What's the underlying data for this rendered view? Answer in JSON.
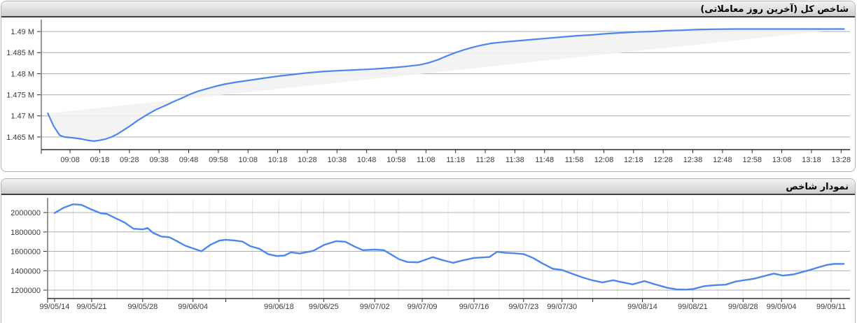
{
  "panels": {
    "intraday": {
      "title": "شاخص کل (آخرین روز معاملاتی)"
    },
    "history": {
      "title": "نمودار شاخص"
    }
  },
  "colors": {
    "line": "#4d86ec",
    "h_grid": "#adadad",
    "minor_grid": "#e7e7e7",
    "axis": "#2f2f2f",
    "tick_label": "#3c3c3c",
    "area_fill": "#f2f2f2",
    "panel_border": "#b2b2b2",
    "header_underline": "#3f3f3f"
  },
  "chart_data": [
    {
      "id": "intraday",
      "type": "line",
      "title": "شاخص کل (آخرین روز معاملاتی)",
      "x_unit": "minutes_after_0900",
      "xlim": [
        -1.7,
        271
      ],
      "ylim": [
        1462000,
        1492500
      ],
      "fill_to_chord": true,
      "minor_vgrid": false,
      "y_ticks": [
        {
          "label": "1.465 M",
          "v": 1465000
        },
        {
          "label": "1.47 M",
          "v": 1470000
        },
        {
          "label": "1.475 M",
          "v": 1475000
        },
        {
          "label": "1.48 M",
          "v": 1480000
        },
        {
          "label": "1.485 M",
          "v": 1485000
        },
        {
          "label": "1.49 M",
          "v": 1490000
        }
      ],
      "x_ticks": [
        {
          "label": "09:08",
          "m": 8
        },
        {
          "label": "09:18",
          "m": 18
        },
        {
          "label": "09:28",
          "m": 28
        },
        {
          "label": "09:38",
          "m": 38
        },
        {
          "label": "09:48",
          "m": 48
        },
        {
          "label": "09:58",
          "m": 58
        },
        {
          "label": "10:08",
          "m": 68
        },
        {
          "label": "10:18",
          "m": 78
        },
        {
          "label": "10:28",
          "m": 88
        },
        {
          "label": "10:38",
          "m": 98
        },
        {
          "label": "10:48",
          "m": 108
        },
        {
          "label": "10:58",
          "m": 118
        },
        {
          "label": "11:08",
          "m": 128
        },
        {
          "label": "11:18",
          "m": 138
        },
        {
          "label": "11:28",
          "m": 148
        },
        {
          "label": "11:38",
          "m": 158
        },
        {
          "label": "11:48",
          "m": 168
        },
        {
          "label": "11:58",
          "m": 178
        },
        {
          "label": "12:08",
          "m": 188
        },
        {
          "label": "12:18",
          "m": 198
        },
        {
          "label": "12:28",
          "m": 208
        },
        {
          "label": "12:38",
          "m": 218
        },
        {
          "label": "12:48",
          "m": 228
        },
        {
          "label": "12:58",
          "m": 238
        },
        {
          "label": "13:08",
          "m": 248
        },
        {
          "label": "13:18",
          "m": 258
        },
        {
          "label": "13:28",
          "m": 268
        }
      ],
      "points": [
        {
          "m": 0.5,
          "v": 1470600
        },
        {
          "m": 2.5,
          "v": 1467500
        },
        {
          "m": 4.5,
          "v": 1465400
        },
        {
          "m": 6,
          "v": 1465000
        },
        {
          "m": 9,
          "v": 1464800
        },
        {
          "m": 12,
          "v": 1464500
        },
        {
          "m": 14,
          "v": 1464200
        },
        {
          "m": 16,
          "v": 1464000
        },
        {
          "m": 18,
          "v": 1464200
        },
        {
          "m": 20,
          "v": 1464500
        },
        {
          "m": 22,
          "v": 1465000
        },
        {
          "m": 24,
          "v": 1465700
        },
        {
          "m": 26,
          "v": 1466600
        },
        {
          "m": 28,
          "v": 1467500
        },
        {
          "m": 31,
          "v": 1469000
        },
        {
          "m": 34,
          "v": 1470300
        },
        {
          "m": 37,
          "v": 1471500
        },
        {
          "m": 40,
          "v": 1472400
        },
        {
          "m": 43,
          "v": 1473400
        },
        {
          "m": 46,
          "v": 1474300
        },
        {
          "m": 48,
          "v": 1475000
        },
        {
          "m": 51,
          "v": 1475800
        },
        {
          "m": 54,
          "v": 1476400
        },
        {
          "m": 57,
          "v": 1477000
        },
        {
          "m": 60,
          "v": 1477500
        },
        {
          "m": 64,
          "v": 1478000
        },
        {
          "m": 68,
          "v": 1478400
        },
        {
          "m": 73,
          "v": 1478900
        },
        {
          "m": 78,
          "v": 1479400
        },
        {
          "m": 83,
          "v": 1479800
        },
        {
          "m": 88,
          "v": 1480200
        },
        {
          "m": 93,
          "v": 1480500
        },
        {
          "m": 98,
          "v": 1480700
        },
        {
          "m": 104,
          "v": 1480900
        },
        {
          "m": 110,
          "v": 1481100
        },
        {
          "m": 116,
          "v": 1481400
        },
        {
          "m": 121,
          "v": 1481700
        },
        {
          "m": 126,
          "v": 1482100
        },
        {
          "m": 129,
          "v": 1482600
        },
        {
          "m": 132,
          "v": 1483300
        },
        {
          "m": 135,
          "v": 1484200
        },
        {
          "m": 138,
          "v": 1485000
        },
        {
          "m": 141,
          "v": 1485700
        },
        {
          "m": 144,
          "v": 1486300
        },
        {
          "m": 147,
          "v": 1486800
        },
        {
          "m": 150,
          "v": 1487200
        },
        {
          "m": 154,
          "v": 1487500
        },
        {
          "m": 159,
          "v": 1487800
        },
        {
          "m": 164,
          "v": 1488100
        },
        {
          "m": 169,
          "v": 1488400
        },
        {
          "m": 174,
          "v": 1488700
        },
        {
          "m": 179,
          "v": 1489000
        },
        {
          "m": 184,
          "v": 1489200
        },
        {
          "m": 189,
          "v": 1489500
        },
        {
          "m": 194,
          "v": 1489700
        },
        {
          "m": 199,
          "v": 1489900
        },
        {
          "m": 204,
          "v": 1490000
        },
        {
          "m": 209,
          "v": 1490200
        },
        {
          "m": 214,
          "v": 1490300
        },
        {
          "m": 219,
          "v": 1490450
        },
        {
          "m": 225,
          "v": 1490550
        },
        {
          "m": 232,
          "v": 1490600
        },
        {
          "m": 240,
          "v": 1490600
        },
        {
          "m": 250,
          "v": 1490600
        },
        {
          "m": 260,
          "v": 1490600
        },
        {
          "m": 269,
          "v": 1490600
        }
      ]
    },
    {
      "id": "history",
      "type": "line",
      "title": "نمودار شاخص",
      "x_unit": "fraction_of_plot_trading_day_index",
      "xlim": [
        0,
        1
      ],
      "ylim": [
        1113500,
        2137000
      ],
      "fill_to_chord": false,
      "minor_vgrid": true,
      "y_ticks": [
        {
          "label": "1200000",
          "v": 1200000
        },
        {
          "label": "1400000",
          "v": 1400000
        },
        {
          "label": "1600000",
          "v": 1600000
        },
        {
          "label": "1800000",
          "v": 1800000
        },
        {
          "label": "2000000",
          "v": 2000000
        }
      ],
      "x_ticks": [
        {
          "label": "99/05/14",
          "f": 0.0087
        },
        {
          "label": "99/05/21",
          "f": 0.0549
        },
        {
          "label": "99/05/28",
          "f": 0.1185
        },
        {
          "label": "99/06/04",
          "f": 0.1812
        },
        {
          "label": "",
          "f": 0.2221
        },
        {
          "label": "99/06/18",
          "f": 0.2883
        },
        {
          "label": "99/06/25",
          "f": 0.3441
        },
        {
          "label": "99/07/02",
          "f": 0.4077
        },
        {
          "label": "99/07/09",
          "f": 0.4669
        },
        {
          "label": "99/07/16",
          "f": 0.5314
        },
        {
          "label": "99/07/23",
          "f": 0.5932
        },
        {
          "label": "99/07/30",
          "f": 0.6411
        },
        {
          "label": "",
          "f": 0.6794
        },
        {
          "label": "99/08/14",
          "f": 0.7413
        },
        {
          "label": "99/08/21",
          "f": 0.804
        },
        {
          "label": "99/08/28",
          "f": 0.8667
        },
        {
          "label": "99/09/04",
          "f": 0.9146
        },
        {
          "label": "99/09/11",
          "f": 0.9765
        }
      ],
      "points": [
        {
          "f": 0.0087,
          "v": 1995000
        },
        {
          "f": 0.02,
          "v": 2050000
        },
        {
          "f": 0.0314,
          "v": 2085000
        },
        {
          "f": 0.0418,
          "v": 2080000
        },
        {
          "f": 0.0549,
          "v": 2030000
        },
        {
          "f": 0.0662,
          "v": 1993000
        },
        {
          "f": 0.074,
          "v": 1985000
        },
        {
          "f": 0.0854,
          "v": 1938000
        },
        {
          "f": 0.0958,
          "v": 1898000
        },
        {
          "f": 0.1071,
          "v": 1833000
        },
        {
          "f": 0.1185,
          "v": 1826000
        },
        {
          "f": 0.1246,
          "v": 1840000
        },
        {
          "f": 0.1315,
          "v": 1790000
        },
        {
          "f": 0.142,
          "v": 1752000
        },
        {
          "f": 0.1516,
          "v": 1746000
        },
        {
          "f": 0.162,
          "v": 1702000
        },
        {
          "f": 0.1716,
          "v": 1658000
        },
        {
          "f": 0.1812,
          "v": 1630000
        },
        {
          "f": 0.1916,
          "v": 1601000
        },
        {
          "f": 0.203,
          "v": 1668000
        },
        {
          "f": 0.2143,
          "v": 1712000
        },
        {
          "f": 0.2221,
          "v": 1720000
        },
        {
          "f": 0.2334,
          "v": 1712000
        },
        {
          "f": 0.243,
          "v": 1700000
        },
        {
          "f": 0.2526,
          "v": 1653000
        },
        {
          "f": 0.2639,
          "v": 1627000
        },
        {
          "f": 0.2753,
          "v": 1570000
        },
        {
          "f": 0.2857,
          "v": 1552000
        },
        {
          "f": 0.2953,
          "v": 1557000
        },
        {
          "f": 0.3031,
          "v": 1590000
        },
        {
          "f": 0.3145,
          "v": 1578000
        },
        {
          "f": 0.331,
          "v": 1605000
        },
        {
          "f": 0.345,
          "v": 1668000
        },
        {
          "f": 0.3598,
          "v": 1705000
        },
        {
          "f": 0.3711,
          "v": 1699000
        },
        {
          "f": 0.3824,
          "v": 1650000
        },
        {
          "f": 0.3929,
          "v": 1612000
        },
        {
          "f": 0.4077,
          "v": 1618000
        },
        {
          "f": 0.419,
          "v": 1612000
        },
        {
          "f": 0.4381,
          "v": 1518000
        },
        {
          "f": 0.4486,
          "v": 1490000
        },
        {
          "f": 0.4617,
          "v": 1487000
        },
        {
          "f": 0.473,
          "v": 1520000
        },
        {
          "f": 0.48,
          "v": 1540000
        },
        {
          "f": 0.493,
          "v": 1508000
        },
        {
          "f": 0.5052,
          "v": 1482000
        },
        {
          "f": 0.5174,
          "v": 1507000
        },
        {
          "f": 0.5314,
          "v": 1532000
        },
        {
          "f": 0.5427,
          "v": 1537000
        },
        {
          "f": 0.5505,
          "v": 1542000
        },
        {
          "f": 0.5601,
          "v": 1595000
        },
        {
          "f": 0.5705,
          "v": 1585000
        },
        {
          "f": 0.5819,
          "v": 1580000
        },
        {
          "f": 0.5932,
          "v": 1572000
        },
        {
          "f": 0.6054,
          "v": 1530000
        },
        {
          "f": 0.6167,
          "v": 1475000
        },
        {
          "f": 0.6298,
          "v": 1420000
        },
        {
          "f": 0.6411,
          "v": 1408000
        },
        {
          "f": 0.6533,
          "v": 1370000
        },
        {
          "f": 0.6672,
          "v": 1330000
        },
        {
          "f": 0.6794,
          "v": 1300000
        },
        {
          "f": 0.6916,
          "v": 1279000
        },
        {
          "f": 0.7047,
          "v": 1302000
        },
        {
          "f": 0.7143,
          "v": 1284000
        },
        {
          "f": 0.7291,
          "v": 1260000
        },
        {
          "f": 0.7439,
          "v": 1294000
        },
        {
          "f": 0.7552,
          "v": 1264000
        },
        {
          "f": 0.7726,
          "v": 1224000
        },
        {
          "f": 0.7848,
          "v": 1207000
        },
        {
          "f": 0.7962,
          "v": 1206000
        },
        {
          "f": 0.8049,
          "v": 1212000
        },
        {
          "f": 0.8179,
          "v": 1240000
        },
        {
          "f": 0.831,
          "v": 1251000
        },
        {
          "f": 0.8449,
          "v": 1256000
        },
        {
          "f": 0.8571,
          "v": 1288000
        },
        {
          "f": 0.8667,
          "v": 1301000
        },
        {
          "f": 0.8798,
          "v": 1317000
        },
        {
          "f": 0.892,
          "v": 1343000
        },
        {
          "f": 0.9051,
          "v": 1371000
        },
        {
          "f": 0.9164,
          "v": 1350000
        },
        {
          "f": 0.9295,
          "v": 1362000
        },
        {
          "f": 0.9495,
          "v": 1407000
        },
        {
          "f": 0.9617,
          "v": 1438000
        },
        {
          "f": 0.9713,
          "v": 1460000
        },
        {
          "f": 0.98,
          "v": 1470000
        },
        {
          "f": 0.9922,
          "v": 1471000
        }
      ]
    }
  ]
}
